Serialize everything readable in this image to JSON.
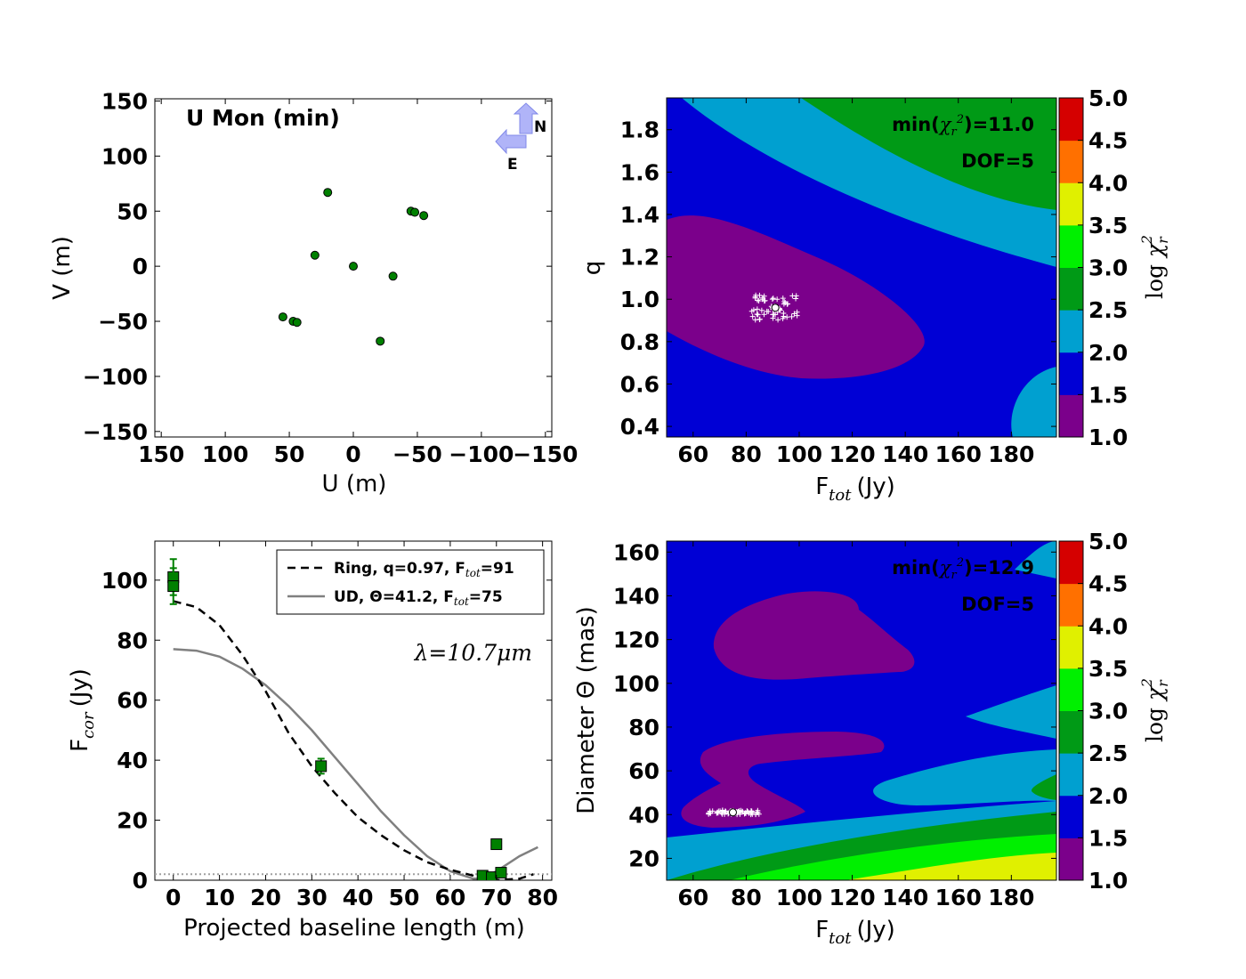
{
  "chart_data": [
    {
      "id": "uv_coverage",
      "type": "scatter",
      "title": "U Mon (min)",
      "xlabel": "U (m)",
      "ylabel": "V (m)",
      "xlim": [
        155,
        -155
      ],
      "ylim": [
        -155,
        152
      ],
      "xticks": [
        150,
        100,
        50,
        0,
        -50,
        -100,
        -150
      ],
      "yticks": [
        150,
        100,
        50,
        0,
        -50,
        -100,
        -150
      ],
      "x_tick_labels": [
        "150",
        "100",
        "50",
        "0",
        "−50",
        "−100",
        "−150"
      ],
      "y_tick_labels": [
        "150",
        "100",
        "50",
        "0",
        "−50",
        "−100",
        "−150"
      ],
      "compass": {
        "north": "N",
        "east": "E"
      },
      "marker_color": "#008000",
      "points": [
        [
          20,
          67
        ],
        [
          -45,
          50
        ],
        [
          -48,
          49
        ],
        [
          -55,
          46
        ],
        [
          30,
          10
        ],
        [
          0,
          0
        ],
        [
          -31,
          -9
        ],
        [
          55,
          -46
        ],
        [
          47,
          -50
        ],
        [
          44,
          -51
        ],
        [
          -21,
          -68
        ]
      ]
    },
    {
      "id": "chi2_ring",
      "type": "heatmap",
      "xlabel_main": "F",
      "xlabel_sub": "tot",
      "xlabel_unit": "(Jy)",
      "ylabel": "q",
      "xlim": [
        50,
        197
      ],
      "ylim": [
        0.35,
        1.95
      ],
      "xticks": [
        60,
        80,
        100,
        120,
        140,
        160,
        180
      ],
      "yticks": [
        0.4,
        0.6,
        0.8,
        1.0,
        1.2,
        1.4,
        1.6,
        1.8
      ],
      "x_tick_labels": [
        "60",
        "80",
        "100",
        "120",
        "140",
        "160",
        "180"
      ],
      "y_tick_labels": [
        "0.4",
        "0.6",
        "0.8",
        "1.0",
        "1.2",
        "1.4",
        "1.6",
        "1.8"
      ],
      "min_chi2_prefix": "min(",
      "min_chi2_symbol": "χ",
      "min_chi2_sub": "r",
      "min_chi2_sup": "2",
      "min_chi2_suffix": ")=11.0",
      "dof_label": "DOF=5",
      "best_fit": [
        91,
        0.96
      ],
      "contour_levels": [
        {
          "range": [
            1.0,
            1.5
          ],
          "color": "#7b008b",
          "region": "ellipse centered near F=95, q=0.95"
        },
        {
          "range": [
            1.5,
            2.0
          ],
          "color": "#0000d5",
          "region": "lower-left to middle band"
        },
        {
          "range": [
            2.0,
            2.5
          ],
          "color": "#00a0d0",
          "region": "middle diagonal band, small patch lower-right"
        },
        {
          "range": [
            2.5,
            3.0
          ],
          "color": "#009a16",
          "region": "upper-right corner"
        }
      ]
    },
    {
      "id": "visibility",
      "type": "line",
      "xlabel": "Projected baseline length (m)",
      "ylabel_main": "F",
      "ylabel_sub": "cor",
      "ylabel_unit": "(Jy)",
      "xlim": [
        -4,
        82
      ],
      "ylim": [
        0,
        113
      ],
      "xticks": [
        0,
        10,
        20,
        30,
        40,
        50,
        60,
        70,
        80
      ],
      "yticks": [
        0,
        20,
        40,
        60,
        80,
        100
      ],
      "x_tick_labels": [
        "0",
        "10",
        "20",
        "30",
        "40",
        "50",
        "60",
        "70",
        "80"
      ],
      "y_tick_labels": [
        "0",
        "20",
        "40",
        "60",
        "80",
        "100"
      ],
      "annotation": "λ=10.7μm",
      "series": [
        {
          "name": "Ring, q=0.97, F_tot=91",
          "legend_prefix": "Ring, q=0.97, F",
          "legend_sub": "tot",
          "legend_suffix": "=91",
          "style": "dashed",
          "color": "#000000",
          "x": [
            0,
            5,
            10,
            15,
            20,
            25,
            30,
            35,
            40,
            45,
            50,
            55,
            60,
            65,
            66,
            70,
            75,
            78
          ],
          "y": [
            93,
            91,
            85,
            75,
            63,
            49,
            38,
            29,
            21,
            15,
            10,
            6,
            3.5,
            1.5,
            0.9,
            0,
            0.5,
            2
          ]
        },
        {
          "name": "UD, Θ=41.2, F_tot=75",
          "legend_prefix": "UD, Θ=41.2, F",
          "legend_sub": "tot",
          "legend_suffix": "=75",
          "style": "solid",
          "color": "#808080",
          "x": [
            0,
            5,
            10,
            15,
            20,
            25,
            30,
            35,
            40,
            45,
            50,
            55,
            60,
            65,
            67,
            70,
            75,
            79
          ],
          "y": [
            77,
            76.5,
            74.5,
            70.5,
            65,
            58,
            50,
            41,
            32,
            23,
            15,
            8,
            3,
            0.5,
            0.5,
            3,
            8,
            11
          ]
        }
      ],
      "data_points": [
        {
          "x": 0,
          "y": 101,
          "err": 6
        },
        {
          "x": 0,
          "y": 98,
          "err": 6
        },
        {
          "x": 32,
          "y": 38,
          "err": 2.5
        },
        {
          "x": 70,
          "y": 12,
          "err": 1
        },
        {
          "x": 67,
          "y": 1.5,
          "err": 1
        },
        {
          "x": 69,
          "y": 1,
          "err": 1
        },
        {
          "x": 71,
          "y": 2.5,
          "err": 1
        }
      ],
      "noise_level": 2
    },
    {
      "id": "chi2_ud",
      "type": "heatmap",
      "xlabel_main": "F",
      "xlabel_sub": "tot",
      "xlabel_unit": "(Jy)",
      "ylabel": "Diameter Θ (mas)",
      "xlim": [
        50,
        197
      ],
      "ylim": [
        10,
        165
      ],
      "xticks": [
        60,
        80,
        100,
        120,
        140,
        160,
        180
      ],
      "yticks": [
        20,
        40,
        60,
        80,
        100,
        120,
        140,
        160
      ],
      "x_tick_labels": [
        "60",
        "80",
        "100",
        "120",
        "140",
        "160",
        "180"
      ],
      "y_tick_labels": [
        "20",
        "40",
        "60",
        "80",
        "100",
        "120",
        "140",
        "160"
      ],
      "min_chi2_prefix": "min(",
      "min_chi2_symbol": "χ",
      "min_chi2_sub": "r",
      "min_chi2_sup": "2",
      "min_chi2_suffix": ")=12.9",
      "dof_label": "DOF=5",
      "best_fit": [
        75,
        41
      ],
      "contour_levels": [
        {
          "range": [
            1.0,
            1.5
          ],
          "color": "#7b008b",
          "region": "blob at D~115 and tongue at D~40-80"
        },
        {
          "range": [
            1.5,
            2.0
          ],
          "color": "#0000d5",
          "region": "background"
        },
        {
          "range": [
            2.0,
            2.5
          ],
          "color": "#00a0d0",
          "region": "bands at D<35 and right side D~50-90"
        },
        {
          "range": [
            2.5,
            3.0
          ],
          "color": "#009a16",
          "region": "band D~15-30"
        },
        {
          "range": [
            3.0,
            3.5
          ],
          "color": "#00f000",
          "region": "lower-right"
        },
        {
          "range": [
            3.5,
            4.0
          ],
          "color": "#e0f000",
          "region": "lower-right corner"
        }
      ]
    }
  ],
  "colorbar": {
    "label_prefix": "log ",
    "label_symbol": "χ",
    "label_sub": "r",
    "label_sup": "2",
    "tick_labels": [
      "1.0",
      "1.5",
      "2.0",
      "2.5",
      "3.0",
      "3.5",
      "4.0",
      "4.5",
      "5.0"
    ],
    "colors": [
      "#7b008b",
      "#0000d5",
      "#00a0d0",
      "#009a16",
      "#00f000",
      "#e0f000",
      "#ff7000",
      "#d50000"
    ]
  }
}
